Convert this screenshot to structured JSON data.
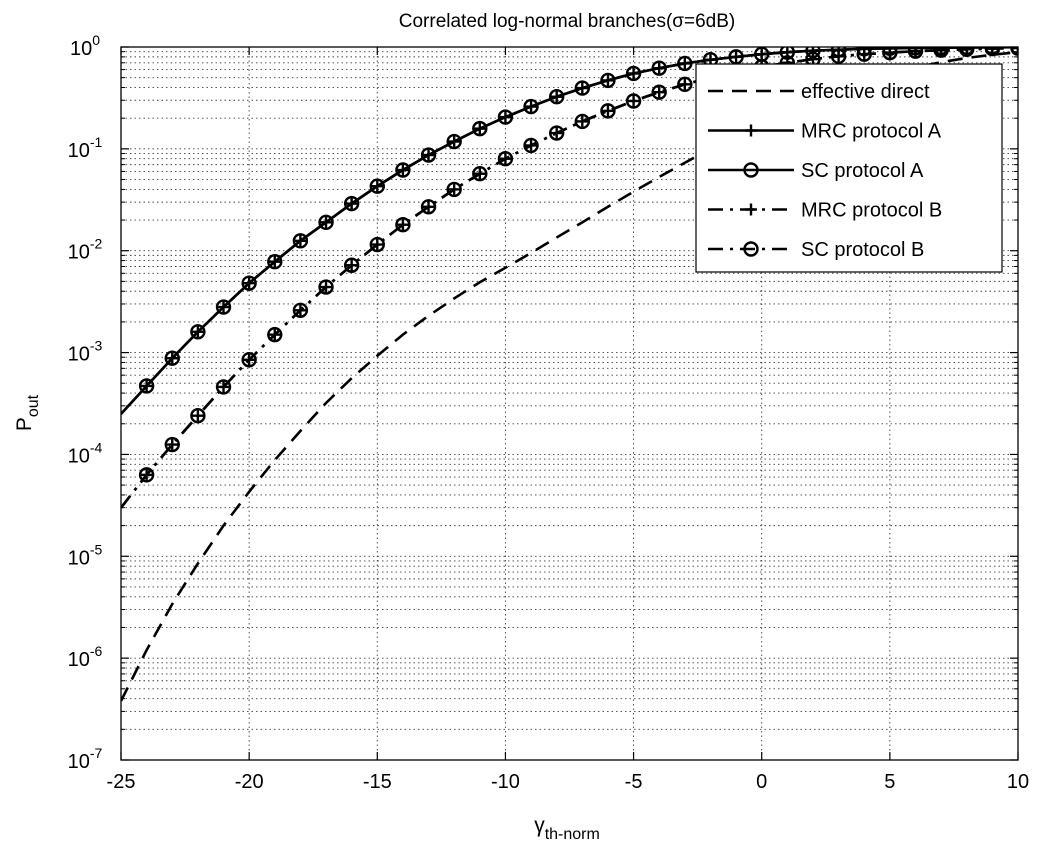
{
  "chart_data": {
    "type": "line",
    "title": "Correlated log-normal branches(σ=6dB)",
    "xlabel": "γ",
    "xlabel_sub": "th-norm",
    "ylabel": "P",
    "ylabel_sub": "out",
    "xlim": [
      -25,
      10
    ],
    "ylim": [
      1e-07,
      1
    ],
    "yscale": "log",
    "grid": true,
    "legend_position": "top-right",
    "x_ticks": [
      "-25",
      "-20",
      "-15",
      "-10",
      "-5",
      "0",
      "5",
      "10"
    ],
    "y_ticks": [
      {
        "base": "10",
        "exp": "-7"
      },
      {
        "base": "10",
        "exp": "-6"
      },
      {
        "base": "10",
        "exp": "-5"
      },
      {
        "base": "10",
        "exp": "-4"
      },
      {
        "base": "10",
        "exp": "-3"
      },
      {
        "base": "10",
        "exp": "-2"
      },
      {
        "base": "10",
        "exp": "-1"
      },
      {
        "base": "10",
        "exp": "0"
      }
    ],
    "x": [
      -25,
      -24,
      -23,
      -22,
      -21,
      -20,
      -19,
      -18,
      -17,
      -16,
      -15,
      -14,
      -13,
      -12,
      -11,
      -10,
      -9,
      -8,
      -7,
      -6,
      -5,
      -4,
      -3,
      -2,
      -1,
      0,
      1,
      2,
      3,
      4,
      5,
      6,
      7,
      8,
      9,
      10
    ],
    "series": [
      {
        "name": "effective direct",
        "line_style": "dashed",
        "marker": "none",
        "values": [
          3.8e-07,
          1.2e-06,
          3.4e-06,
          8.5e-06,
          2e-05,
          4.3e-05,
          8.8e-05,
          0.00017,
          0.00032,
          0.00056,
          0.00093,
          0.0015,
          0.0023,
          0.0034,
          0.0049,
          0.0068,
          0.0095,
          0.0135,
          0.019,
          0.027,
          0.038,
          0.053,
          0.073,
          0.1,
          0.135,
          0.18,
          0.235,
          0.3,
          0.38,
          0.46,
          0.55,
          0.63,
          0.71,
          0.78,
          0.84,
          0.89
        ]
      },
      {
        "name": "MRC protocol A",
        "line_style": "solid",
        "marker": "plus",
        "values": [
          0.00025,
          0.00047,
          0.00088,
          0.0016,
          0.0028,
          0.0048,
          0.0078,
          0.0125,
          0.019,
          0.029,
          0.043,
          0.062,
          0.087,
          0.118,
          0.158,
          0.205,
          0.26,
          0.325,
          0.395,
          0.47,
          0.55,
          0.62,
          0.69,
          0.75,
          0.8,
          0.85,
          0.89,
          0.92,
          0.94,
          0.96,
          0.97,
          0.98,
          0.985,
          0.99,
          0.993,
          0.995
        ]
      },
      {
        "name": "SC protocol A",
        "line_style": "solid",
        "marker": "circle",
        "values": [
          0.00025,
          0.00047,
          0.00088,
          0.0016,
          0.0028,
          0.0048,
          0.0078,
          0.0125,
          0.019,
          0.029,
          0.043,
          0.062,
          0.087,
          0.118,
          0.158,
          0.205,
          0.26,
          0.325,
          0.395,
          0.47,
          0.55,
          0.62,
          0.69,
          0.75,
          0.8,
          0.85,
          0.89,
          0.92,
          0.94,
          0.96,
          0.97,
          0.98,
          0.985,
          0.99,
          0.993,
          0.995
        ]
      },
      {
        "name": "MRC protocol B",
        "line_style": "dashdot",
        "marker": "plus",
        "values": [
          3e-05,
          6.3e-05,
          0.000125,
          0.00024,
          0.00046,
          0.00085,
          0.0015,
          0.0026,
          0.0044,
          0.0072,
          0.0115,
          0.018,
          0.027,
          0.04,
          0.057,
          0.08,
          0.108,
          0.143,
          0.186,
          0.236,
          0.295,
          0.36,
          0.43,
          0.5,
          0.57,
          0.64,
          0.7,
          0.76,
          0.81,
          0.85,
          0.88,
          0.91,
          0.93,
          0.95,
          0.965,
          0.975
        ]
      },
      {
        "name": "SC protocol B",
        "line_style": "dashdot",
        "marker": "circle",
        "values": [
          3e-05,
          6.3e-05,
          0.000125,
          0.00024,
          0.00046,
          0.00085,
          0.0015,
          0.0026,
          0.0044,
          0.0072,
          0.0115,
          0.018,
          0.027,
          0.04,
          0.057,
          0.08,
          0.108,
          0.143,
          0.186,
          0.236,
          0.295,
          0.36,
          0.43,
          0.5,
          0.57,
          0.64,
          0.7,
          0.76,
          0.81,
          0.85,
          0.88,
          0.91,
          0.93,
          0.95,
          0.965,
          0.975
        ]
      }
    ]
  }
}
